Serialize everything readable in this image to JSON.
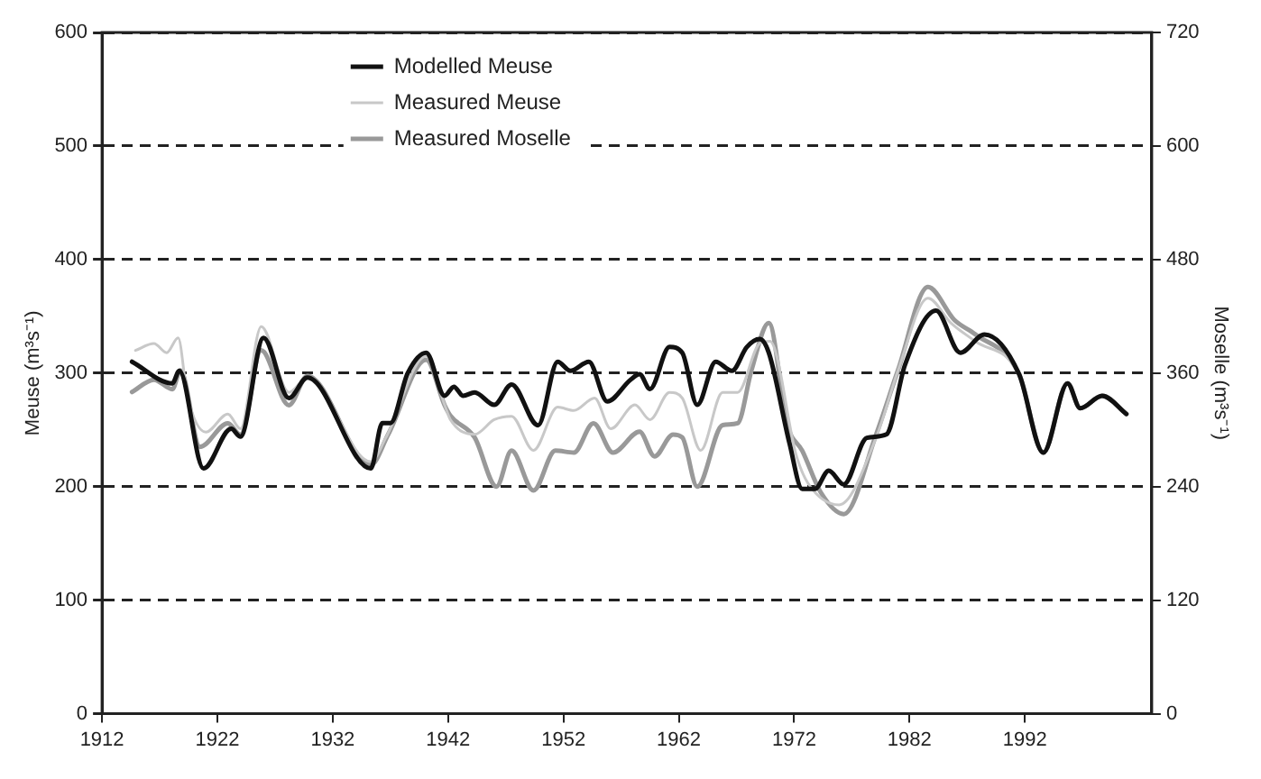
{
  "chart_data": {
    "type": "line",
    "ylabel": "Meuse (m³s⁻¹)",
    "y2label": "Moselle (m³s⁻¹)",
    "xlim": [
      1912,
      2003
    ],
    "xticks": [
      1912,
      1922,
      1932,
      1942,
      1952,
      1962,
      1972,
      1982,
      1992
    ],
    "ylim": [
      0,
      600
    ],
    "yticks": [
      0,
      100,
      200,
      300,
      400,
      500,
      600
    ],
    "y2lim": [
      0,
      720
    ],
    "y2ticks": [
      0,
      120,
      240,
      360,
      480,
      600,
      720
    ],
    "grid": "y",
    "legend": "top",
    "marker": "none",
    "line_style": "solid",
    "series": [
      {
        "name": "Modelled Meuse",
        "color": "#111111",
        "x": [
          1914.6,
          1918.1,
          1918.7,
          1920.8,
          1923.2,
          1924,
          1926,
          1928.2,
          1929.8,
          1935.3,
          1936.3,
          1937,
          1938.5,
          1940.1,
          1941.7,
          1942.5,
          1943.3,
          1944.3,
          1946,
          1947.5,
          1949.8,
          1951.5,
          1952.6,
          1954.2,
          1955.8,
          1957.8,
          1958.6,
          1959.5,
          1961.2,
          1962.3,
          1963.6,
          1965.2,
          1966.6,
          1967.9,
          1969,
          1969.8,
          1971.6,
          1972.7,
          1973.8,
          1975,
          1976.3,
          1978.3,
          1980,
          1981.6,
          1984.3,
          1986.4,
          1988.5,
          1991.5,
          1993.6,
          1995.7,
          1996.8,
          1998.7,
          2000.8
        ],
        "values": [
          310,
          291,
          302,
          216,
          251,
          244,
          331,
          278,
          296,
          216,
          256,
          256,
          300,
          318,
          280,
          288,
          280,
          283,
          272,
          290,
          254,
          310,
          302,
          310,
          275,
          294,
          299,
          286,
          323,
          318,
          272,
          310,
          302,
          323,
          330,
          318,
          238,
          198,
          198,
          214,
          202,
          243,
          246,
          307,
          355,
          318,
          334,
          299,
          230,
          291,
          269,
          280,
          264
        ]
      },
      {
        "name": "Measured Meuse",
        "color": "#c8c8c8",
        "x": [
          1914.9,
          1916.5,
          1917.6,
          1918.6,
          1919.4,
          1921,
          1922.9,
          1924,
          1925.8,
          1928.2,
          1929.8,
          1935.3,
          1936.6,
          1940.1,
          1941.7,
          1942.2,
          1944.3,
          1946,
          1947.5,
          1949.4,
          1951.5,
          1952.9,
          1954.7,
          1956.1,
          1958.2,
          1959.5,
          1961.2,
          1962.3,
          1963.9,
          1965.8,
          1967.1,
          1969,
          1969.9,
          1972.2,
          1973.2,
          1975.9,
          1979.1,
          1981,
          1983.6,
          1985.6,
          1987.7,
          1991.5,
          1993.6,
          1995.7,
          1996.8,
          1998.7,
          2000.8
        ],
        "values": [
          320,
          326,
          318,
          331,
          280,
          248,
          264,
          251,
          341,
          283,
          296,
          222,
          243,
          315,
          272,
          259,
          246,
          259,
          262,
          232,
          270,
          267,
          278,
          251,
          272,
          259,
          283,
          278,
          232,
          283,
          283,
          326,
          328,
          227,
          203,
          184,
          243,
          302,
          366,
          344,
          328,
          299,
          230,
          291,
          269,
          280,
          264
        ]
      },
      {
        "name": "Measured Moselle",
        "color": "#999999",
        "axis": "y2",
        "x": [
          1914.6,
          1916.5,
          1918.1,
          1918.8,
          1920.5,
          1922.9,
          1924,
          1925.8,
          1928.2,
          1929.8,
          1935.3,
          1936.8,
          1940.1,
          1941.7,
          1942.2,
          1944.3,
          1946.2,
          1947.5,
          1949.4,
          1951.3,
          1952.9,
          1954.6,
          1956.3,
          1958.6,
          1959.9,
          1961.5,
          1962.3,
          1963.6,
          1965.8,
          1967.1,
          1968.3,
          1969.8,
          1971.4,
          1972.7,
          1974.3,
          1976.3,
          1979.1,
          1981,
          1983.6,
          1985.9,
          1987.7,
          1991.5,
          1993.6,
          1995.7,
          1996.8,
          1998.7,
          2000.8
        ],
        "values": [
          340,
          353,
          343,
          363,
          282,
          307,
          295,
          384,
          326,
          357,
          263,
          295,
          374,
          326,
          315,
          292,
          240,
          278,
          236,
          278,
          276,
          307,
          276,
          298,
          272,
          295,
          292,
          240,
          305,
          307,
          363,
          413,
          305,
          278,
          234,
          211,
          295,
          363,
          451,
          416,
          401,
          359,
          276,
          349,
          323,
          336,
          317
        ]
      }
    ]
  }
}
